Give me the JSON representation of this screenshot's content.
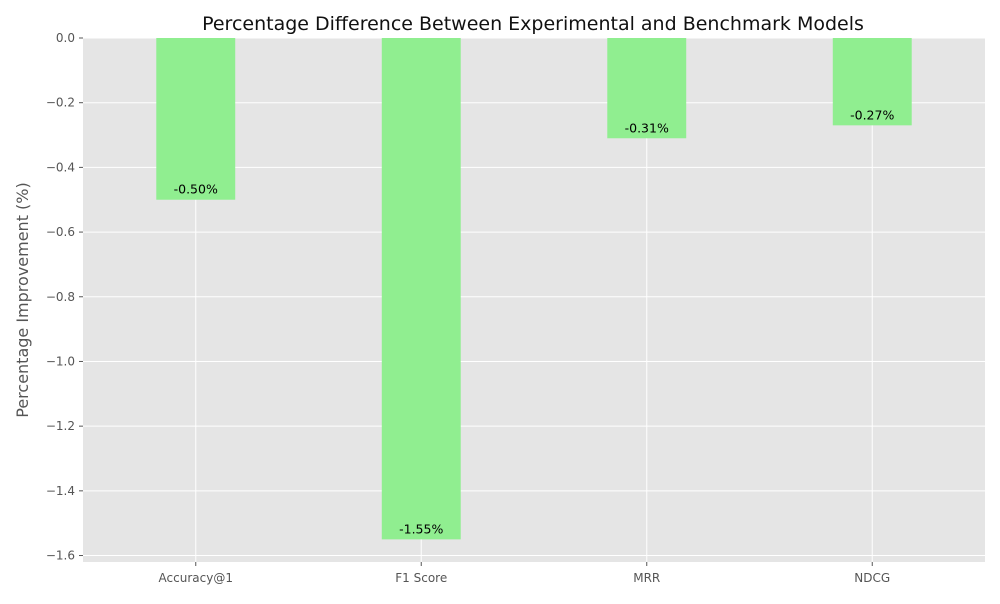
{
  "chart_data": {
    "type": "bar",
    "title": "Percentage Difference Between Experimental and Benchmark Models",
    "xlabel": "",
    "ylabel": "Percentage Improvement (%)",
    "categories": [
      "Accuracy@1",
      "F1 Score",
      "MRR",
      "NDCG"
    ],
    "values": [
      -0.5,
      -1.55,
      -0.31,
      -0.27
    ],
    "data_labels": [
      "-0.50%",
      "-1.55%",
      "-0.31%",
      "-0.27%"
    ],
    "ylim": [
      -1.62,
      0.0
    ],
    "yticks": [
      0.0,
      -0.2,
      -0.4,
      -0.6,
      -0.8,
      -1.0,
      -1.2,
      -1.4,
      -1.6
    ],
    "ytick_labels": [
      "0.0",
      "−0.2",
      "−0.4",
      "−0.6",
      "−0.8",
      "−1.0",
      "−1.2",
      "−1.4",
      "−1.6"
    ],
    "grid": true,
    "colors": {
      "bar": "#90ee90",
      "plot_background": "#e5e5e5",
      "grid": "#ffffff"
    }
  }
}
